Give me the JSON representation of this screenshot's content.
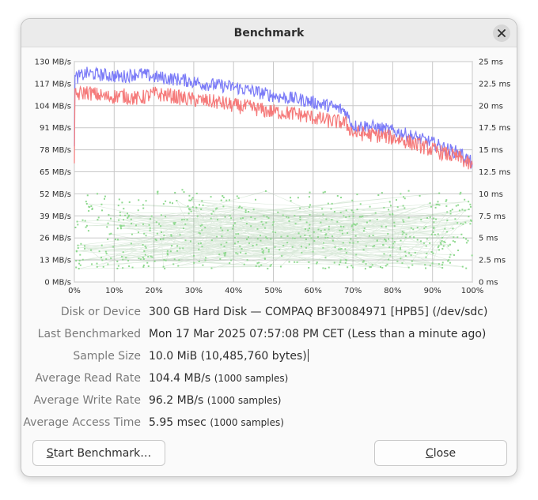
{
  "window": {
    "title": "Benchmark"
  },
  "chart_data": {
    "type": "line",
    "x_ticks": [
      "0%",
      "10%",
      "20%",
      "30%",
      "40%",
      "50%",
      "60%",
      "70%",
      "80%",
      "90%",
      "100%"
    ],
    "y_left_ticks": [
      "0 MB/s",
      "13 MB/s",
      "26 MB/s",
      "39 MB/s",
      "52 MB/s",
      "65 MB/s",
      "78 MB/s",
      "91 MB/s",
      "104 MB/s",
      "117 MB/s",
      "130 MB/s"
    ],
    "y_right_ticks": [
      "0 ms",
      "2.5 ms",
      "5 ms",
      "7.5 ms",
      "10 ms",
      "12.5 ms",
      "15 ms",
      "17.5 ms",
      "20 ms",
      "22.5 ms",
      "25 ms"
    ],
    "xlim": [
      0,
      100
    ],
    "ylim_left": [
      0,
      130
    ],
    "ylim_right": [
      0,
      25
    ],
    "grid": true,
    "read_color": "#7b7bf7",
    "write_color": "#f57a7a",
    "access_color": "#8fd98f",
    "series": [
      {
        "values_read": [
          [
            0,
            120
          ],
          [
            3,
            123
          ],
          [
            8,
            122
          ],
          [
            12,
            121
          ],
          [
            16,
            123
          ],
          [
            20,
            121
          ],
          [
            24,
            120
          ],
          [
            28,
            119
          ],
          [
            32,
            117
          ],
          [
            36,
            116
          ],
          [
            40,
            115
          ],
          [
            44,
            113
          ],
          [
            48,
            111
          ],
          [
            52,
            109
          ],
          [
            56,
            108
          ],
          [
            60,
            106
          ],
          [
            64,
            104
          ],
          [
            68,
            101
          ],
          [
            70,
            92
          ],
          [
            74,
            92
          ],
          [
            78,
            90
          ],
          [
            82,
            88
          ],
          [
            86,
            85
          ],
          [
            90,
            82
          ],
          [
            94,
            78
          ],
          [
            97,
            76
          ],
          [
            100,
            70
          ]
        ]
      },
      {
        "values_write": [
          [
            0,
            110
          ],
          [
            3,
            112
          ],
          [
            8,
            109
          ],
          [
            12,
            110
          ],
          [
            16,
            108
          ],
          [
            20,
            111
          ],
          [
            24,
            110
          ],
          [
            28,
            108
          ],
          [
            32,
            107
          ],
          [
            36,
            106
          ],
          [
            40,
            104
          ],
          [
            44,
            103
          ],
          [
            48,
            101
          ],
          [
            52,
            100
          ],
          [
            56,
            99
          ],
          [
            60,
            97
          ],
          [
            64,
            95
          ],
          [
            68,
            94
          ],
          [
            70,
            88
          ],
          [
            74,
            87
          ],
          [
            78,
            86
          ],
          [
            82,
            84
          ],
          [
            86,
            81
          ],
          [
            90,
            78
          ],
          [
            94,
            75
          ],
          [
            97,
            73
          ],
          [
            100,
            68
          ]
        ]
      }
    ],
    "access_time_range_ms": [
      1.5,
      10.5
    ]
  },
  "info": [
    {
      "label": "Disk or Device",
      "value": "300 GB Hard Disk — COMPAQ BF30084971 [HPB5] (/dev/sdc)",
      "note": ""
    },
    {
      "label": "Last Benchmarked",
      "value": "Mon 17 Mar 2025 07:57:08 PM CET (Less than a minute ago)",
      "note": ""
    },
    {
      "label": "Sample Size",
      "value": "10.0 MiB (10,485,760 bytes)",
      "note": ""
    },
    {
      "label": "Average Read Rate",
      "value": "104.4 MB/s",
      "note": "(1000 samples)"
    },
    {
      "label": "Average Write Rate",
      "value": "96.2 MB/s",
      "note": "(1000 samples)"
    },
    {
      "label": "Average Access Time",
      "value": "5.95 msec",
      "note": "(1000 samples)"
    }
  ],
  "buttons": {
    "start_mnemonic": "S",
    "start_rest": "tart Benchmark…",
    "close_mnemonic": "C",
    "close_rest": "lose"
  }
}
